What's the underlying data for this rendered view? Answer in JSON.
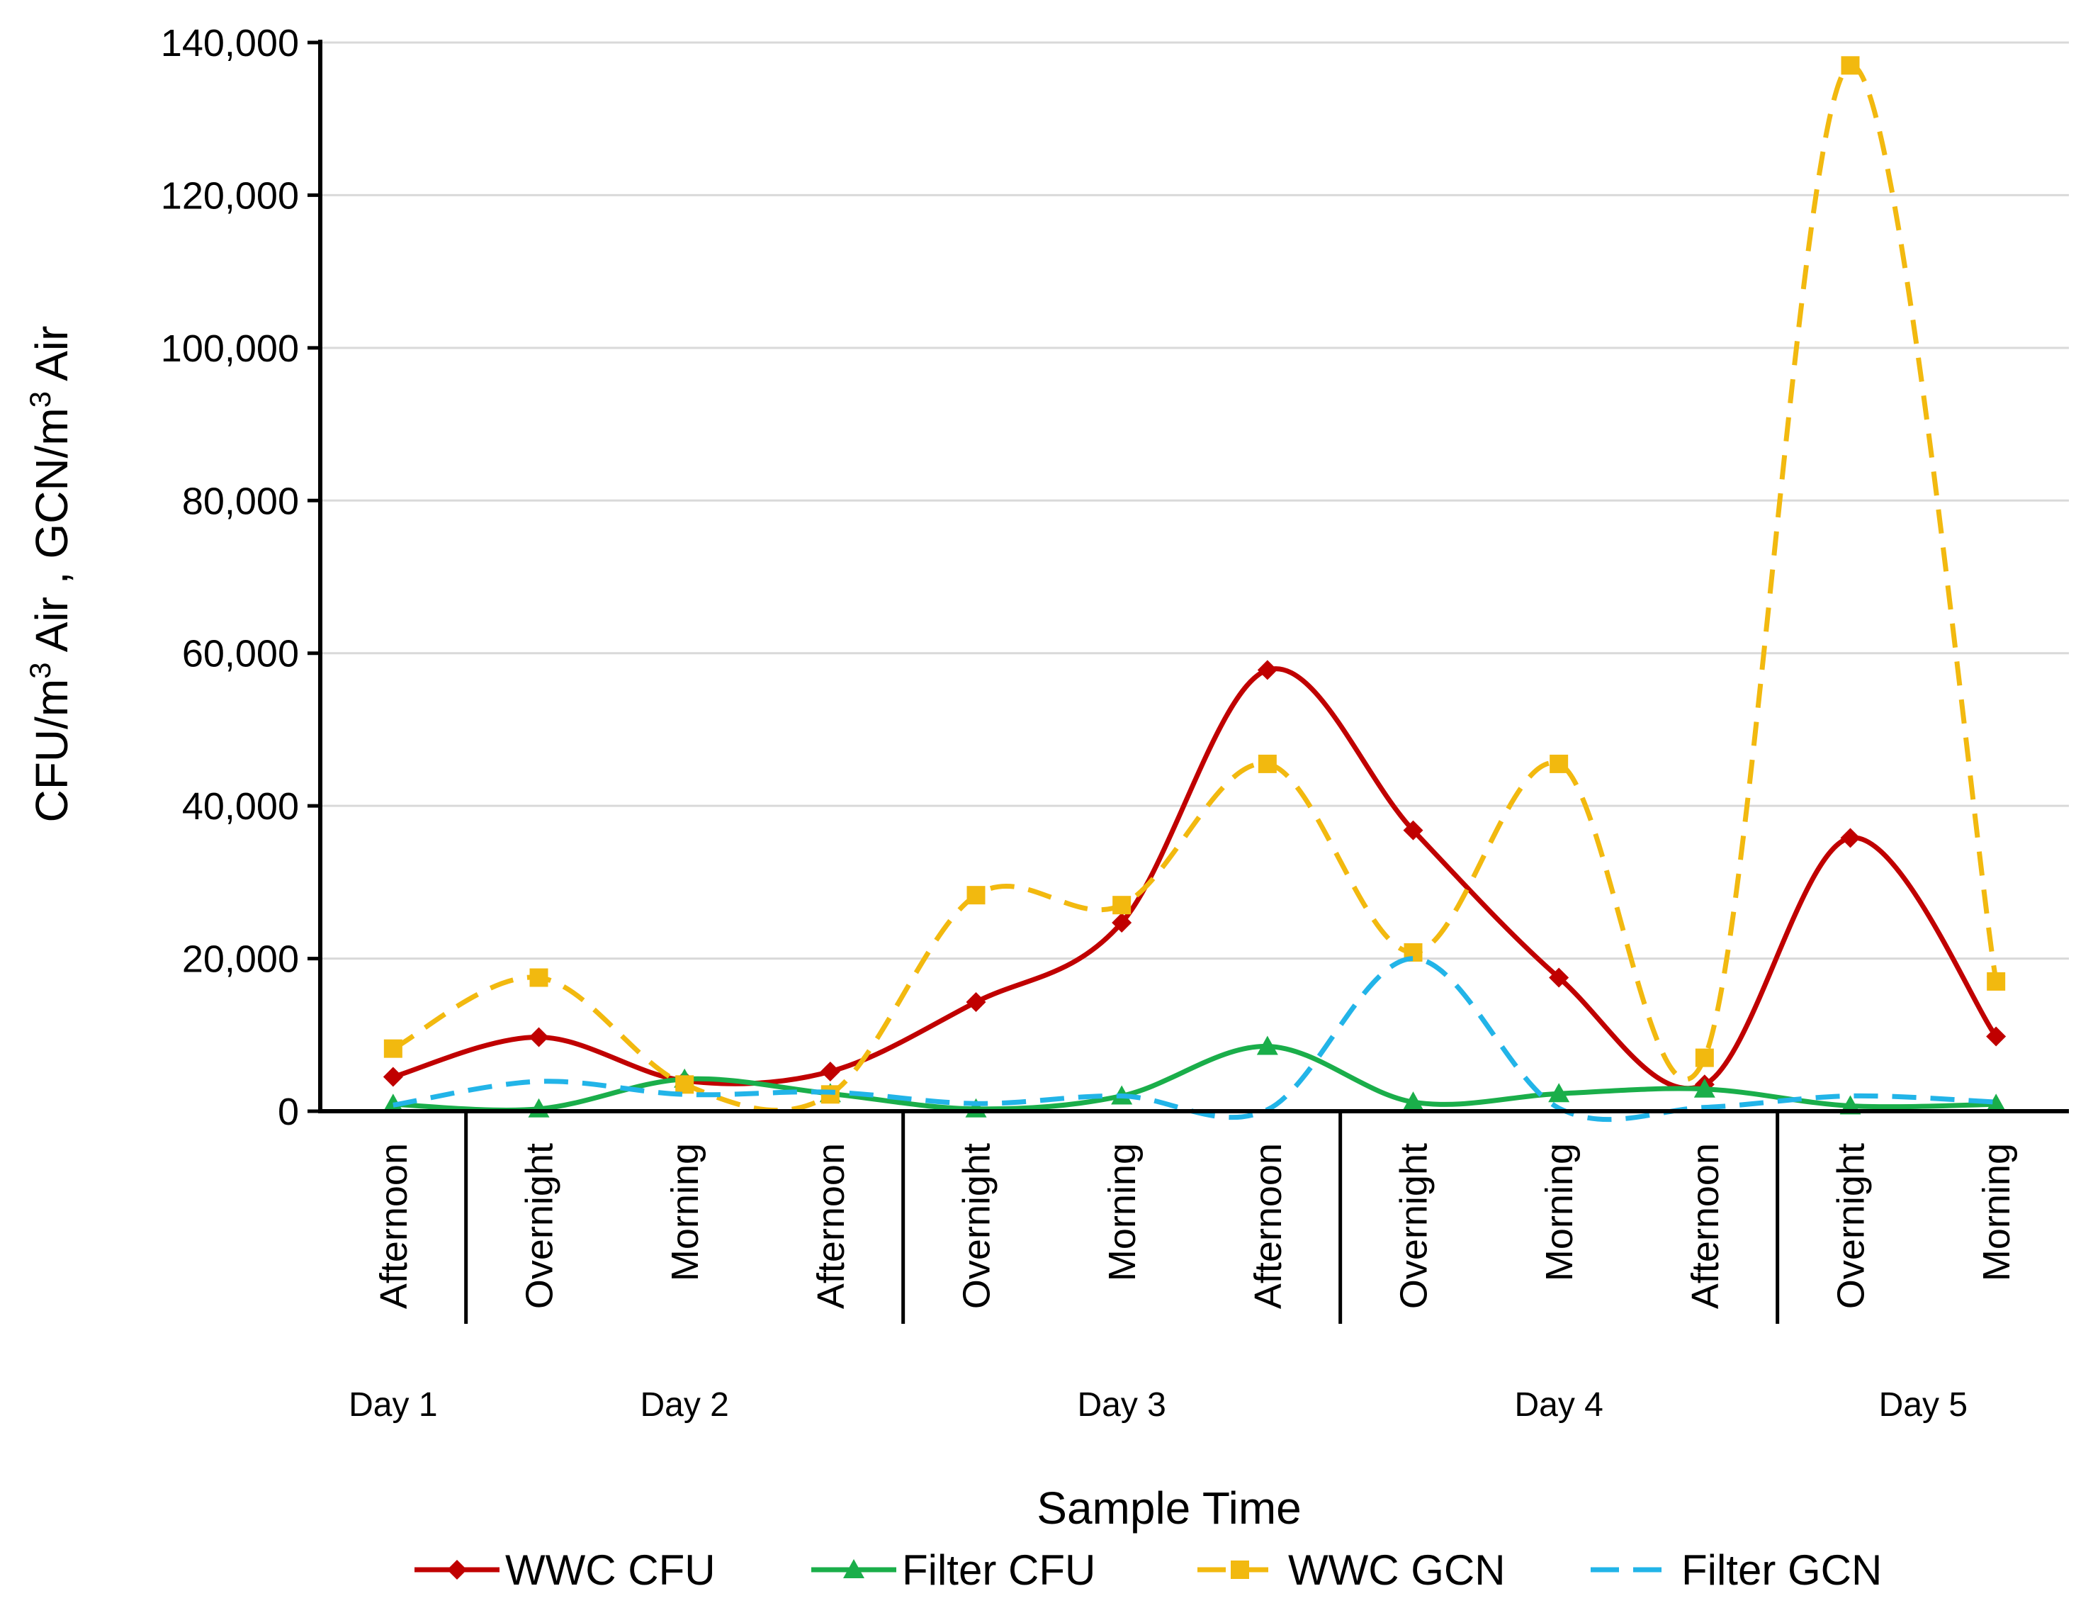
{
  "chart_data": {
    "type": "line",
    "title": "",
    "xlabel": "Sample Time",
    "ylabel_parts": [
      "CFU/m",
      "3",
      " Air , GCN/m",
      "3",
      " Air"
    ],
    "ylabel": "CFU/m3 Air , GCN/m3 Air",
    "ylim": [
      0,
      140000
    ],
    "y_ticks": [
      0,
      20000,
      40000,
      60000,
      80000,
      100000,
      120000,
      140000
    ],
    "y_tick_labels": [
      "0",
      "20,000",
      "40,000",
      "60,000",
      "80,000",
      "100,000",
      "120,000",
      "140,000"
    ],
    "grid": true,
    "categories": [
      "Afternoon",
      "Overnight",
      "Morning",
      "Afternoon",
      "Overnight",
      "Morning",
      "Afternoon",
      "Overnight",
      "Morning",
      "Afternoon",
      "Overnight",
      "Morning"
    ],
    "groups": [
      {
        "label": "Day 1",
        "start": 0,
        "end": 0
      },
      {
        "label": "Day 2",
        "start": 1,
        "end": 3
      },
      {
        "label": "Day 3",
        "start": 4,
        "end": 6
      },
      {
        "label": "Day 4",
        "start": 7,
        "end": 9
      },
      {
        "label": "Day 5",
        "start": 10,
        "end": 11
      }
    ],
    "series": [
      {
        "name": "WWC CFU",
        "color": "#C00000",
        "dash": "solid",
        "marker": "diamond",
        "values": [
          4500,
          9700,
          4000,
          5200,
          14300,
          24700,
          57800,
          36800,
          17500,
          3500,
          35800,
          9800
        ]
      },
      {
        "name": "Filter CFU",
        "color": "#1AAE4A",
        "dash": "solid",
        "marker": "triangle",
        "values": [
          900,
          300,
          4200,
          2300,
          300,
          2000,
          8500,
          1200,
          2300,
          2900,
          700,
          900
        ]
      },
      {
        "name": "WWC GCN",
        "color": "#F2B90F",
        "dash": "dashed",
        "marker": "square",
        "values": [
          8200,
          17500,
          3500,
          2200,
          28300,
          27000,
          45500,
          20800,
          45500,
          7000,
          137000,
          17000
        ]
      },
      {
        "name": "Filter GCN",
        "color": "#22B4E8",
        "dash": "dashed",
        "marker": "none",
        "values": [
          800,
          3900,
          2200,
          2500,
          1000,
          2000,
          200,
          20000,
          400,
          500,
          2000,
          1200
        ]
      }
    ],
    "legend_position": "bottom"
  }
}
